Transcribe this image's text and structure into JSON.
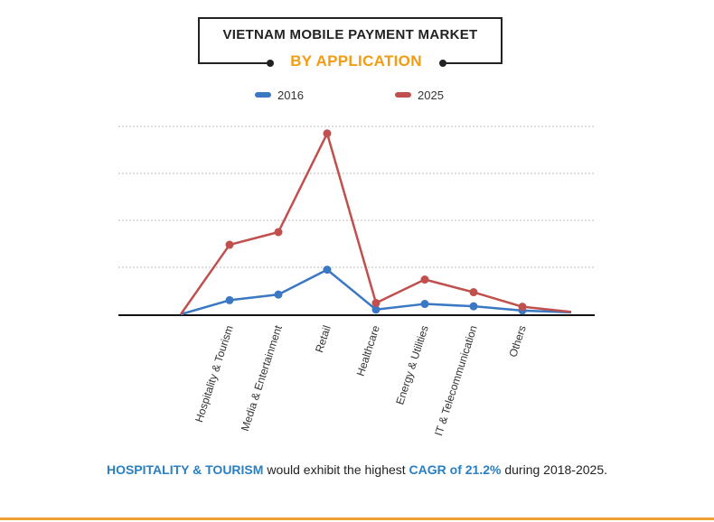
{
  "header": {
    "title_line1": "VIETNAM MOBILE PAYMENT MARKET",
    "title_line2": "BY APPLICATION",
    "title_color": "#f39c12"
  },
  "chart_data": {
    "type": "line",
    "categories": [
      "",
      "Hospitality & Tourism",
      "Media & Entertainment",
      "Retail",
      "Healthcare",
      "Energy & Utilities",
      "IT & Telecommunication",
      "Others",
      ""
    ],
    "series": [
      {
        "name": "2016",
        "color": "#3a78c3",
        "values": [
          0,
          3,
          4.2,
          9.5,
          1,
          2.2,
          1.7,
          0.8,
          0.4
        ]
      },
      {
        "name": "2025",
        "color": "#c0504d",
        "values": [
          0,
          14.8,
          17.5,
          38.5,
          2.4,
          7.4,
          4.7,
          1.6,
          0.5
        ]
      }
    ],
    "ylim": [
      0,
      40
    ],
    "y_gridlines": [
      10,
      20,
      30,
      40
    ],
    "grid": true,
    "legend": "top-center"
  },
  "footer": {
    "highlight1": "HOSPITALITY & TOURISM",
    "text1": " would exhibit the highest ",
    "highlight2": "CAGR of 21.2%",
    "text2": " during 2018-2025."
  },
  "colors": {
    "highlight": "#2a7fc1",
    "accent_rule": "#f0a030"
  }
}
